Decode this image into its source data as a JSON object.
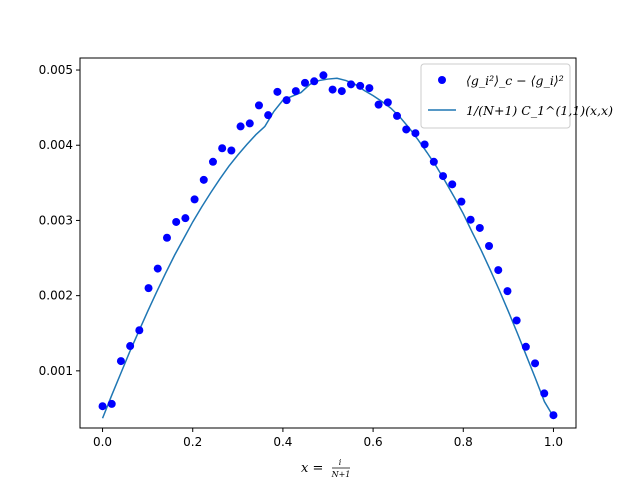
{
  "chart_data": {
    "type": "scatter",
    "title": "",
    "xlabel": {
      "main": "x = ",
      "frac_num": "i",
      "frac_den": "N+1"
    },
    "ylabel": "",
    "xlim": [
      -0.05,
      1.05
    ],
    "ylim": [
      0.00024,
      0.00516
    ],
    "xticks": [
      0.0,
      0.2,
      0.4,
      0.6,
      0.8,
      1.0
    ],
    "xtick_labels": [
      "0.0",
      "0.2",
      "0.4",
      "0.6",
      "0.8",
      "1.0"
    ],
    "yticks": [
      0.001,
      0.002,
      0.003,
      0.004,
      0.005
    ],
    "ytick_labels": [
      "0.001",
      "0.002",
      "0.003",
      "0.004",
      "0.005"
    ],
    "grid": false,
    "legend_placement": "top-right",
    "legend": {
      "scatter_label": "⟨g_i²⟩_c − ⟨g_i⟩²",
      "line_label": "1/(N+1) C_1^(1,1)(x,x)"
    },
    "colors": {
      "scatter": "#0000ff",
      "line": "#1f77b4"
    },
    "series": [
      {
        "kind": "scatter",
        "x": [
          0.0,
          0.0204,
          0.0408,
          0.0612,
          0.0816,
          0.102,
          0.1224,
          0.1429,
          0.1633,
          0.1837,
          0.2041,
          0.2245,
          0.2449,
          0.2653,
          0.2857,
          0.3061,
          0.3265,
          0.3469,
          0.3673,
          0.3878,
          0.4082,
          0.4286,
          0.449,
          0.4694,
          0.4898,
          0.5102,
          0.5306,
          0.551,
          0.5714,
          0.5918,
          0.6122,
          0.6327,
          0.6531,
          0.6735,
          0.6939,
          0.7143,
          0.7347,
          0.7551,
          0.7755,
          0.7959,
          0.8163,
          0.8367,
          0.8571,
          0.8776,
          0.898,
          0.9184,
          0.9388,
          0.9592,
          0.9796,
          1.0
        ],
        "y": [
          0.00053,
          0.00056,
          0.00113,
          0.00133,
          0.00154,
          0.0021,
          0.00236,
          0.00277,
          0.00298,
          0.00303,
          0.00328,
          0.00354,
          0.00378,
          0.00396,
          0.00393,
          0.00425,
          0.00429,
          0.00453,
          0.0044,
          0.00471,
          0.0046,
          0.00472,
          0.00483,
          0.00485,
          0.00493,
          0.00474,
          0.00472,
          0.00481,
          0.00479,
          0.00476,
          0.00454,
          0.00457,
          0.00439,
          0.00421,
          0.00416,
          0.00401,
          0.00378,
          0.00359,
          0.00348,
          0.00325,
          0.00301,
          0.0029,
          0.00266,
          0.00234,
          0.00206,
          0.00167,
          0.00132,
          0.0011,
          0.0007,
          0.00041
        ]
      },
      {
        "kind": "line",
        "x": [
          0.0,
          0.02,
          0.04,
          0.06,
          0.08,
          0.1,
          0.12,
          0.14,
          0.16,
          0.18,
          0.2,
          0.22,
          0.24,
          0.26,
          0.28,
          0.3,
          0.32,
          0.34,
          0.36,
          0.38,
          0.4,
          0.42,
          0.44,
          0.46,
          0.48,
          0.5,
          0.52,
          0.54,
          0.56,
          0.58,
          0.6,
          0.62,
          0.64,
          0.66,
          0.68,
          0.7,
          0.72,
          0.74,
          0.76,
          0.78,
          0.8,
          0.82,
          0.84,
          0.86,
          0.88,
          0.9,
          0.92,
          0.94,
          0.96,
          0.98,
          1.0
        ],
        "y": [
          0.00037,
          0.00067,
          0.00096,
          0.00125,
          0.00152,
          0.00179,
          0.00205,
          0.0023,
          0.00254,
          0.00276,
          0.00298,
          0.00318,
          0.00337,
          0.00355,
          0.00372,
          0.00387,
          0.00401,
          0.00414,
          0.00425,
          0.00445,
          0.0046,
          0.00465,
          0.0047,
          0.00481,
          0.00486,
          0.00488,
          0.00489,
          0.00486,
          0.00481,
          0.00473,
          0.00466,
          0.00458,
          0.00449,
          0.00437,
          0.00423,
          0.00407,
          0.0039,
          0.00372,
          0.00352,
          0.00331,
          0.00309,
          0.00284,
          0.0026,
          0.00234,
          0.00207,
          0.00179,
          0.0015,
          0.0012,
          0.0009,
          0.00059,
          0.00039
        ]
      }
    ]
  }
}
